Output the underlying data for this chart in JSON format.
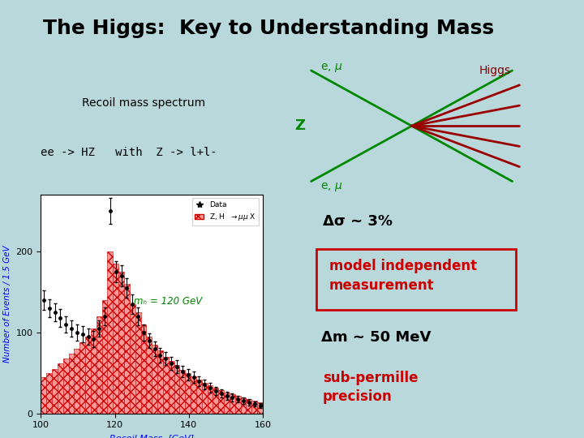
{
  "title": "The Higgs:  Key to Understanding Mass",
  "title_bg": "#FFFF00",
  "title_color": "#000000",
  "title_fontsize": 18,
  "bg_color": "#B8D8DC",
  "slide_text_left1": "Recoil mass spectrum",
  "slide_text_left2": "ee -> HZ   with  Z -> l+l-",
  "delta_sigma_text": "Δσ ~ 3%",
  "delta_sigma_bg": "#FFFF00",
  "model_text": "model independent\nmeasurement",
  "model_border_color": "#CC0000",
  "delta_m_text": "Δm ~ 50 MeV",
  "delta_m_bg": "#FFFF00",
  "subpermille_text": "sub-permille\nprecision",
  "subpermille_color": "#CC0000",
  "hist_x_edges": [
    100,
    101.5,
    103,
    104.5,
    106,
    107.5,
    109,
    110.5,
    112,
    113.5,
    115,
    116.5,
    118,
    119.5,
    121,
    122.5,
    124,
    125.5,
    127,
    128.5,
    130,
    131.5,
    133,
    134.5,
    136,
    137.5,
    139,
    140.5,
    142,
    143.5,
    145,
    146.5,
    148,
    149.5,
    151,
    152.5,
    154,
    155.5,
    157,
    158.5,
    160
  ],
  "hist_y": [
    45,
    50,
    55,
    62,
    68,
    74,
    80,
    88,
    95,
    105,
    120,
    140,
    200,
    185,
    175,
    160,
    135,
    125,
    110,
    95,
    85,
    78,
    70,
    65,
    60,
    54,
    50,
    46,
    42,
    38,
    35,
    32,
    29,
    26,
    24,
    22,
    20,
    18,
    16,
    14
  ],
  "data_x": [
    100.75,
    102.25,
    103.75,
    105.25,
    106.75,
    108.25,
    109.75,
    111.25,
    112.75,
    114.25,
    115.75,
    117.25,
    118.75,
    120.25,
    121.75,
    123.25,
    124.75,
    126.25,
    127.75,
    129.25,
    130.75,
    132.25,
    133.75,
    135.25,
    136.75,
    138.25,
    139.75,
    141.25,
    142.75,
    144.25,
    145.75,
    147.25,
    148.75,
    150.25,
    151.75,
    153.25,
    154.75,
    156.25,
    157.75,
    159.25
  ],
  "data_y": [
    140,
    130,
    125,
    118,
    110,
    105,
    100,
    98,
    95,
    92,
    105,
    120,
    250,
    175,
    170,
    155,
    135,
    120,
    100,
    90,
    80,
    72,
    68,
    62,
    58,
    52,
    48,
    45,
    40,
    36,
    32,
    28,
    25,
    22,
    20,
    18,
    16,
    14,
    12,
    10
  ],
  "data_err": [
    12,
    11,
    11,
    11,
    10,
    10,
    10,
    10,
    10,
    10,
    10,
    11,
    16,
    13,
    13,
    12,
    12,
    11,
    10,
    9,
    9,
    9,
    8,
    8,
    8,
    7,
    7,
    7,
    6,
    6,
    6,
    5,
    5,
    5,
    5,
    4,
    4,
    4,
    3,
    3
  ],
  "mH_label": "mₕ = 120 GeV",
  "mH_color": "#008800",
  "ylabel": "Number of Events / 1.5 GeV",
  "xlabel": "Recoil Mass  [GeV]",
  "xlim": [
    100,
    160
  ],
  "ylim": [
    0,
    270
  ],
  "yticks": [
    0,
    100,
    200
  ],
  "xticks": [
    100,
    120,
    140,
    160
  ],
  "hist_color": "#FF9999",
  "hist_edge": "#CC0000",
  "feynman_bg": "#FFFFFF",
  "feynman_z_color": "#008800",
  "feynman_higgs_color": "#990000",
  "emu_color": "#008800",
  "higgs_label_color": "#880000",
  "z_label_color": "#008800"
}
